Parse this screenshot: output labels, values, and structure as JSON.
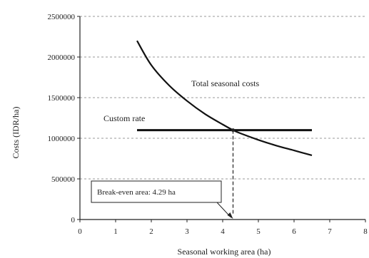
{
  "chart_data": {
    "type": "line",
    "title": "",
    "xlabel": "Seasonal working area (ha)",
    "ylabel": "Costs (IDR/ha)",
    "xlim": [
      0,
      8
    ],
    "ylim": [
      0,
      2500000
    ],
    "x_ticks": [
      0,
      1,
      2,
      3,
      4,
      5,
      6,
      7,
      8
    ],
    "x_tick_labels": [
      "0",
      "1",
      "2",
      "3",
      "4",
      "5",
      "6",
      "7",
      "8"
    ],
    "y_ticks": [
      0,
      500000,
      1000000,
      1500000,
      2000000,
      2500000
    ],
    "y_tick_labels": [
      "0",
      "500000",
      "1000000",
      "1500000",
      "2000000",
      "2500000"
    ],
    "grid": "horizontal dashed",
    "series": [
      {
        "name": "Total seasonal costs",
        "color": "#111111",
        "x": [
          1.6,
          2.0,
          2.5,
          3.0,
          3.5,
          4.0,
          4.29,
          4.5,
          5.0,
          5.5,
          6.0,
          6.5
        ],
        "y": [
          2200000,
          1900000,
          1650000,
          1460000,
          1300000,
          1170000,
          1100000,
          1060000,
          980000,
          910000,
          850000,
          790000
        ]
      },
      {
        "name": "Custom rate",
        "color": "#111111",
        "x": [
          1.6,
          6.5
        ],
        "y": [
          1100000,
          1100000
        ]
      }
    ],
    "annotations": {
      "total_label": "Total seasonal costs",
      "custom_label": "Custom rate",
      "break_even_label": "Break-even area: 4.29 ha",
      "break_even_x": 4.29,
      "break_even_y": 1100000
    }
  }
}
